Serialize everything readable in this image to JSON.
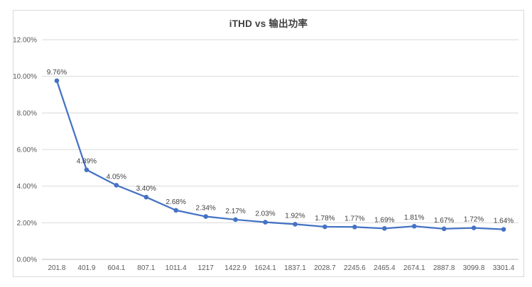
{
  "chart_data": {
    "type": "line",
    "title": "iTHD vs 输出功率",
    "categories": [
      "201.8",
      "401.9",
      "604.1",
      "807.1",
      "1011.4",
      "1217",
      "1422.9",
      "1624.1",
      "1837.1",
      "2028.7",
      "2245.6",
      "2465.4",
      "2674.1",
      "2887.8",
      "3099.8",
      "3301.4"
    ],
    "values": [
      9.76,
      4.89,
      4.05,
      3.4,
      2.68,
      2.34,
      2.17,
      2.03,
      1.92,
      1.78,
      1.77,
      1.69,
      1.81,
      1.67,
      1.72,
      1.64
    ],
    "data_labels": [
      "9.76%",
      "4.89%",
      "4.05%",
      "3.40%",
      "2.68%",
      "2.34%",
      "2.17%",
      "2.03%",
      "1.92%",
      "1.78%",
      "1.77%",
      "1.69%",
      "1.81%",
      "1.67%",
      "1.72%",
      "1.64%"
    ],
    "y_ticks": [
      "0.00%",
      "2.00%",
      "4.00%",
      "6.00%",
      "8.00%",
      "10.00%",
      "12.00%"
    ],
    "xlabel": "",
    "ylabel": "",
    "ylim": [
      0,
      12
    ],
    "y_tick_step": 2,
    "grid": true,
    "legend": "none",
    "colors": {
      "line": "#4472C4",
      "marker": "#4472C4",
      "gridline": "#D9D9D9",
      "axis_line": "#BFBFBF",
      "tick_label": "#595959",
      "data_label": "#404040",
      "border": "#D9D9D9",
      "background": "#FFFFFF"
    }
  }
}
